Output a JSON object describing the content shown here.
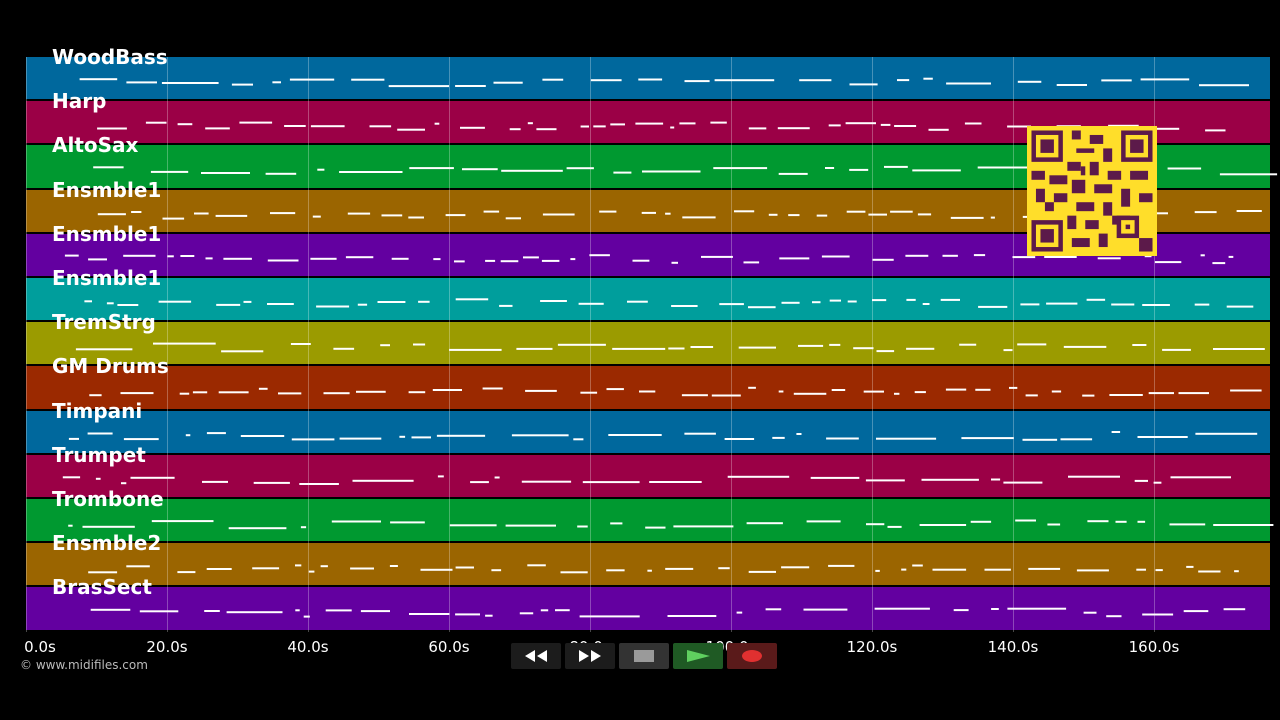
{
  "lanes": [
    {
      "label": "WoodBass",
      "color": "#00689d"
    },
    {
      "label": "Harp",
      "color": "#9b0046"
    },
    {
      "label": "AltoSax",
      "color": "#009930"
    },
    {
      "label": "Ensmble1",
      "color": "#9b6500"
    },
    {
      "label": "Ensmble1",
      "color": "#6300a0"
    },
    {
      "label": "Ensmble1",
      "color": "#009e9c"
    },
    {
      "label": "TremStrg",
      "color": "#9b9b00"
    },
    {
      "label": "GM Drums",
      "color": "#9b2900"
    },
    {
      "label": "Timpani",
      "color": "#00689d"
    },
    {
      "label": "Trumpet",
      "color": "#9b0046"
    },
    {
      "label": "Trombone",
      "color": "#009930"
    },
    {
      "label": "Ensmble2",
      "color": "#9b6500"
    },
    {
      "label": "BrasSect",
      "color": "#6300a0"
    }
  ],
  "timeline": {
    "ticks": [
      "0.0s",
      "20.0s",
      "40.0s",
      "60.0s",
      "80.0s",
      "100.0s",
      "120.0s",
      "140.0s",
      "160.0s"
    ]
  },
  "copyright": "© www.midifiles.com",
  "transport": {
    "rewind_icon": "rewind-icon",
    "forward_icon": "fast-forward-icon",
    "stop_icon": "stop-icon",
    "play_icon": "play-icon",
    "record_icon": "record-icon"
  },
  "qr_icon": "qr-code-icon"
}
